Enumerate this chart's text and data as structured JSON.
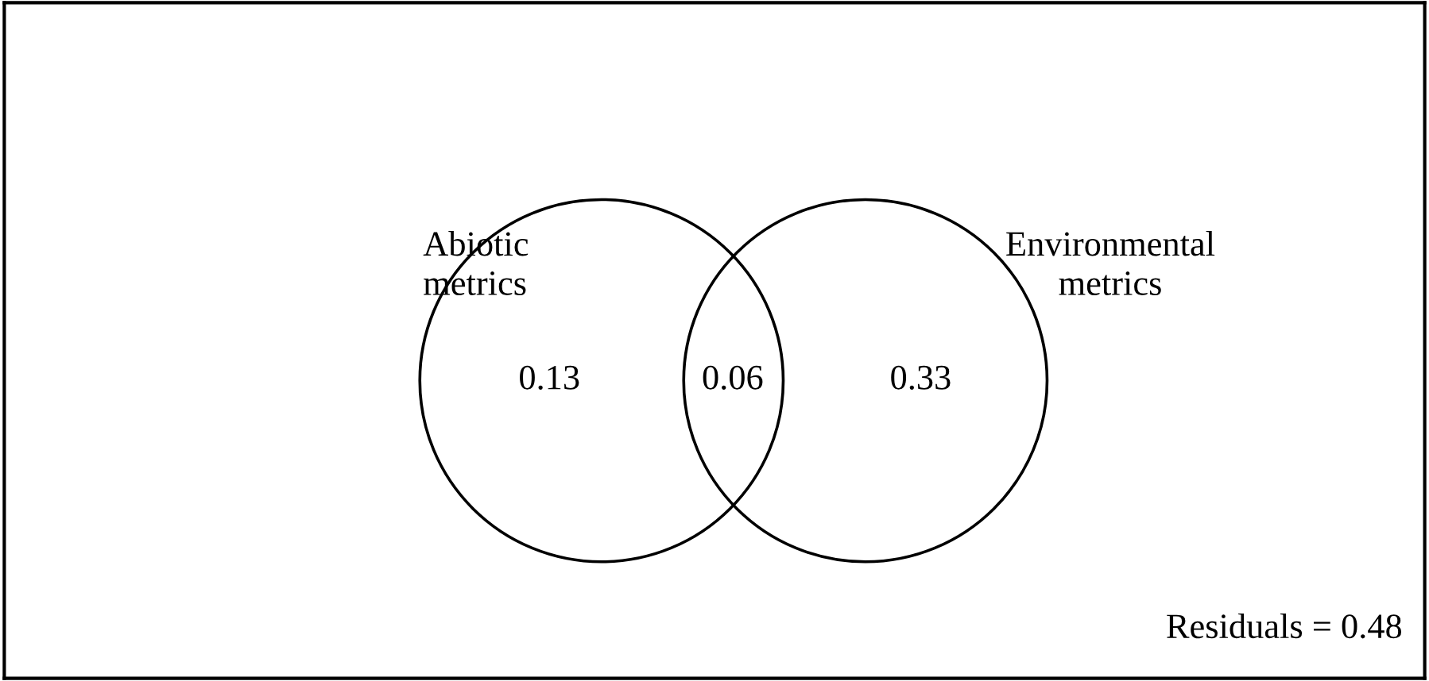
{
  "chart_data": {
    "type": "other",
    "categories": [
      "Abiotic\nmetrics",
      null,
      "Environmental\nmetrics"
    ],
    "values": [
      0.13,
      0.06,
      0.33
    ],
    "data_labels": true,
    "annotations": [
      "Residuals = 0.48"
    ]
  }
}
